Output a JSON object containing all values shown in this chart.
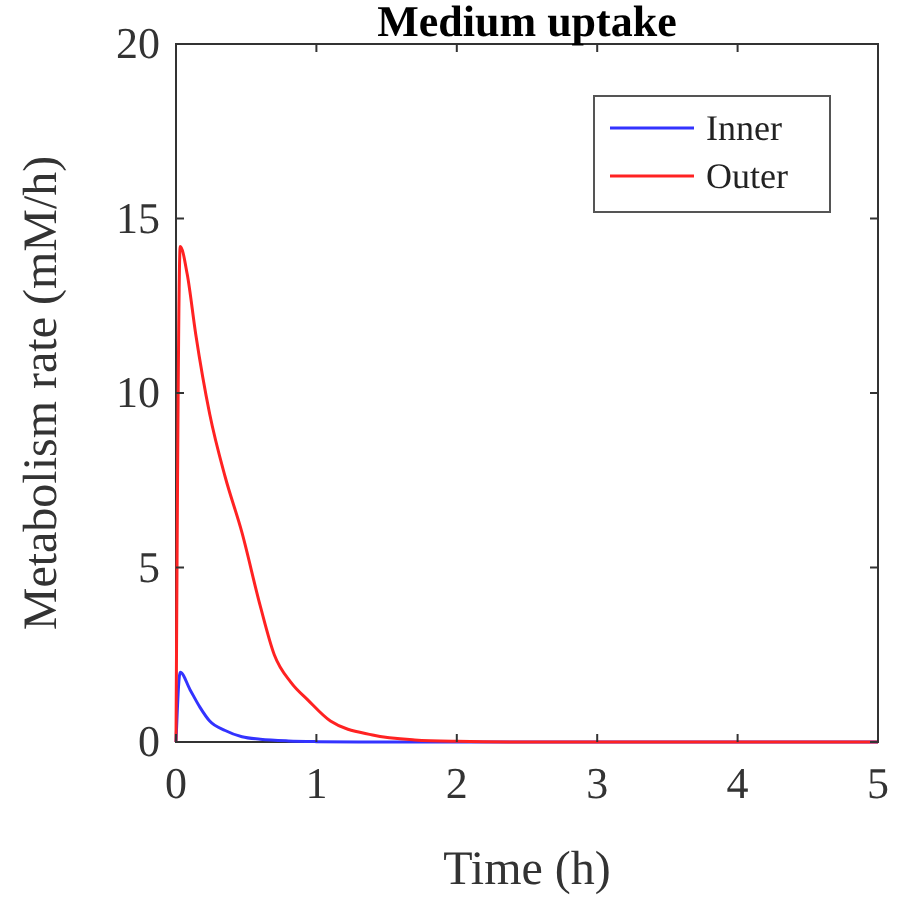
{
  "chart_data": {
    "type": "line",
    "title": "Medium uptake",
    "xlabel": "Time (h)",
    "ylabel": "Metabolism rate (mM/h)",
    "xlim": [
      0,
      5
    ],
    "ylim": [
      0,
      20
    ],
    "xticks": [
      0,
      1,
      2,
      3,
      4,
      5
    ],
    "yticks": [
      0,
      5,
      10,
      15,
      20
    ],
    "legend": "top right",
    "grid": false,
    "series": [
      {
        "name": "Inner",
        "color": "#3333ff",
        "x": [
          0,
          0.03,
          0.1,
          0.17,
          0.24,
          0.35,
          0.47,
          0.6,
          0.8,
          1,
          1.3,
          2,
          5
        ],
        "values": [
          0,
          2.0,
          1.5,
          1.0,
          0.6,
          0.33,
          0.15,
          0.08,
          0.03,
          0.01,
          0,
          0,
          0
        ]
      },
      {
        "name": "Outer",
        "color": "#ff2222",
        "x": [
          0,
          0.03,
          0.08,
          0.14,
          0.24,
          0.35,
          0.47,
          0.6,
          0.7,
          0.82,
          0.94,
          1.1,
          1.4,
          1.7,
          2,
          2.5,
          5
        ],
        "values": [
          0,
          14.2,
          13.4,
          11.7,
          9.4,
          7.6,
          6.0,
          3.9,
          2.5,
          1.7,
          1.2,
          0.6,
          0.2,
          0.06,
          0.02,
          0,
          0
        ]
      }
    ]
  }
}
